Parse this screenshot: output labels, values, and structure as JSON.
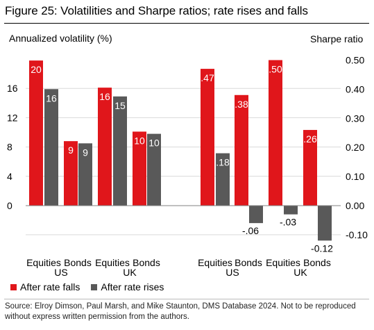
{
  "title": "Figure 25: Volatilities and Sharpe ratios; rate rises and falls",
  "left_axis_label": "Annualized volatility (%)",
  "right_axis_label": "Sharpe ratio",
  "legend": [
    {
      "label": "After rate falls",
      "color": "#e0161b"
    },
    {
      "label": "After rate rises",
      "color": "#595959"
    }
  ],
  "source": "Source:  Elroy Dimson, Paul Marsh, and Mike Staunton, DMS Database 2024. Not to be reproduced without express written permission from the authors.",
  "chart_data": [
    {
      "type": "bar",
      "axis": "left",
      "ylim": [
        0,
        20
      ],
      "ticks": [
        "16",
        "12",
        "8",
        "4",
        "0"
      ],
      "tick_values": [
        16,
        12,
        8,
        4,
        0
      ],
      "categories": [
        "Equities",
        "Bonds",
        "Equities",
        "Bonds"
      ],
      "groups": [
        "US",
        "UK"
      ],
      "series": [
        {
          "name": "After rate falls",
          "values": [
            20,
            9,
            16,
            10
          ],
          "labels": [
            "20",
            "9",
            "16",
            "10"
          ]
        },
        {
          "name": "After rate rises",
          "values": [
            16,
            9,
            15,
            10
          ],
          "labels": [
            "16",
            "9",
            "15",
            "10"
          ]
        }
      ],
      "bar_values": {
        "falls": [
          19.8,
          8.8,
          16.1,
          10.1
        ],
        "rises": [
          15.9,
          8.5,
          14.9,
          9.8
        ]
      }
    },
    {
      "type": "bar",
      "axis": "right",
      "ylim": [
        -0.1,
        0.5
      ],
      "ticks": [
        "0.50",
        "0.40",
        "0.30",
        "0.20",
        "0.10",
        "0.00",
        "-0.10"
      ],
      "tick_values": [
        0.5,
        0.4,
        0.3,
        0.2,
        0.1,
        0.0,
        -0.1
      ],
      "categories": [
        "Equities",
        "Bonds",
        "Equities",
        "Bonds"
      ],
      "groups": [
        "US",
        "UK"
      ],
      "series": [
        {
          "name": "After rate falls",
          "values": [
            0.47,
            0.38,
            0.5,
            0.26
          ],
          "labels": [
            ".47",
            ".38",
            ".50",
            ".26"
          ]
        },
        {
          "name": "After rate rises",
          "values": [
            0.18,
            -0.06,
            -0.03,
            -0.12
          ],
          "labels": [
            ".18",
            "-.06",
            "-.03",
            "-0.12"
          ]
        }
      ]
    }
  ]
}
